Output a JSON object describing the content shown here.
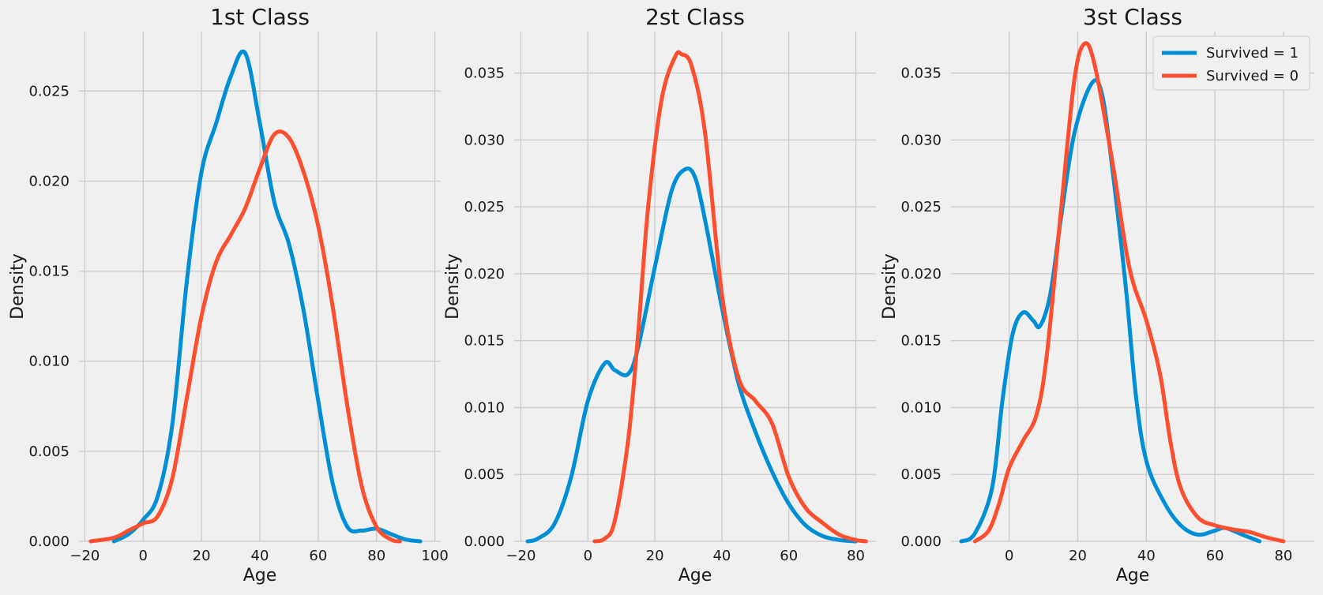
{
  "chart_data": [
    {
      "type": "line",
      "title": "1st Class",
      "xlabel": "Age",
      "ylabel": "Density",
      "xlim": [
        -22,
        102
      ],
      "ylim": [
        0,
        0.0283
      ],
      "xticks": [
        -20,
        0,
        20,
        40,
        60,
        80,
        100
      ],
      "xtick_labels": [
        "−20",
        "0",
        "20",
        "40",
        "60",
        "80",
        "100"
      ],
      "yticks": [
        0,
        0.005,
        0.01,
        0.015,
        0.02,
        0.025
      ],
      "ytick_labels": [
        "0.000",
        "0.005",
        "0.010",
        "0.015",
        "0.020",
        "0.025"
      ],
      "grid": true,
      "series": [
        {
          "name": "Survived = 1",
          "color": "#008fd5",
          "points": [
            [
              -10,
              0
            ],
            [
              -5,
              0.0004
            ],
            [
              0,
              0.0012
            ],
            [
              5,
              0.0025
            ],
            [
              10,
              0.0065
            ],
            [
              15,
              0.0145
            ],
            [
              20,
              0.0205
            ],
            [
              25,
              0.0232
            ],
            [
              30,
              0.0258
            ],
            [
              35,
              0.0271
            ],
            [
              40,
              0.0232
            ],
            [
              45,
              0.0188
            ],
            [
              50,
              0.0165
            ],
            [
              55,
              0.0128
            ],
            [
              60,
              0.0078
            ],
            [
              65,
              0.0032
            ],
            [
              70,
              0.0008
            ],
            [
              75,
              0.0006
            ],
            [
              80,
              0.0007
            ],
            [
              85,
              0.0004
            ],
            [
              90,
              0.0001
            ],
            [
              95,
              0
            ]
          ]
        },
        {
          "name": "Survived = 0",
          "color": "#fc4f30",
          "points": [
            [
              -18,
              0
            ],
            [
              -10,
              0.0002
            ],
            [
              -5,
              0.0006
            ],
            [
              0,
              0.001
            ],
            [
              5,
              0.0014
            ],
            [
              10,
              0.0035
            ],
            [
              15,
              0.008
            ],
            [
              20,
              0.0125
            ],
            [
              25,
              0.0155
            ],
            [
              30,
              0.017
            ],
            [
              35,
              0.0185
            ],
            [
              40,
              0.0207
            ],
            [
              45,
              0.0226
            ],
            [
              50,
              0.0224
            ],
            [
              55,
              0.0205
            ],
            [
              60,
              0.0175
            ],
            [
              65,
              0.013
            ],
            [
              70,
              0.0075
            ],
            [
              75,
              0.003
            ],
            [
              80,
              0.0008
            ],
            [
              85,
              0.0001
            ],
            [
              88,
              0
            ]
          ]
        }
      ]
    },
    {
      "type": "line",
      "title": "2st Class",
      "xlabel": "Age",
      "ylabel": "Density",
      "xlim": [
        -22,
        86
      ],
      "ylim": [
        0,
        0.0381
      ],
      "xticks": [
        -20,
        0,
        20,
        40,
        60,
        80
      ],
      "xtick_labels": [
        "−20",
        "0",
        "20",
        "40",
        "60",
        "80"
      ],
      "yticks": [
        0,
        0.005,
        0.01,
        0.015,
        0.02,
        0.025,
        0.03,
        0.035
      ],
      "ytick_labels": [
        "0.000",
        "0.005",
        "0.010",
        "0.015",
        "0.020",
        "0.025",
        "0.030",
        "0.035"
      ],
      "grid": true,
      "series": [
        {
          "name": "Survived = 1",
          "color": "#008fd5",
          "points": [
            [
              -18,
              0
            ],
            [
              -15,
              0.0002
            ],
            [
              -10,
              0.0013
            ],
            [
              -5,
              0.0048
            ],
            [
              0,
              0.0105
            ],
            [
              5,
              0.0133
            ],
            [
              8,
              0.0128
            ],
            [
              12,
              0.0125
            ],
            [
              15,
              0.0145
            ],
            [
              20,
              0.0205
            ],
            [
              25,
              0.0262
            ],
            [
              29,
              0.0278
            ],
            [
              32,
              0.0272
            ],
            [
              35,
              0.024
            ],
            [
              40,
              0.0175
            ],
            [
              45,
              0.0118
            ],
            [
              50,
              0.0082
            ],
            [
              55,
              0.0052
            ],
            [
              60,
              0.0028
            ],
            [
              65,
              0.0012
            ],
            [
              70,
              0.0004
            ],
            [
              75,
              0.0001
            ],
            [
              80,
              0
            ]
          ]
        },
        {
          "name": "Survived = 0",
          "color": "#fc4f30",
          "points": [
            [
              2,
              0
            ],
            [
              5,
              0.0002
            ],
            [
              8,
              0.0015
            ],
            [
              12,
              0.0075
            ],
            [
              15,
              0.0155
            ],
            [
              18,
              0.025
            ],
            [
              22,
              0.033
            ],
            [
              26,
              0.0362
            ],
            [
              28,
              0.0364
            ],
            [
              31,
              0.0355
            ],
            [
              35,
              0.0305
            ],
            [
              40,
              0.0185
            ],
            [
              45,
              0.0122
            ],
            [
              50,
              0.0105
            ],
            [
              55,
              0.0088
            ],
            [
              60,
              0.0048
            ],
            [
              65,
              0.0025
            ],
            [
              70,
              0.0014
            ],
            [
              75,
              0.0005
            ],
            [
              80,
              0.0001
            ],
            [
              83,
              0
            ]
          ]
        }
      ]
    },
    {
      "type": "line",
      "title": "3st Class",
      "xlabel": "Age",
      "ylabel": "Density",
      "xlim": [
        -17,
        89
      ],
      "ylim": [
        0,
        0.0381
      ],
      "xticks": [
        0,
        20,
        40,
        60,
        80
      ],
      "xtick_labels": [
        "0",
        "20",
        "40",
        "60",
        "80"
      ],
      "yticks": [
        0,
        0.005,
        0.01,
        0.015,
        0.02,
        0.025,
        0.03,
        0.035
      ],
      "ytick_labels": [
        "0.000",
        "0.005",
        "0.010",
        "0.015",
        "0.020",
        "0.025",
        "0.030",
        "0.035"
      ],
      "grid": true,
      "legend": "top-right",
      "series": [
        {
          "name": "Survived = 1",
          "color": "#008fd5",
          "points": [
            [
              -14,
              0
            ],
            [
              -10,
              0.0006
            ],
            [
              -5,
              0.004
            ],
            [
              -2,
              0.0105
            ],
            [
              1,
              0.0155
            ],
            [
              4,
              0.0171
            ],
            [
              7,
              0.0165
            ],
            [
              9,
              0.0161
            ],
            [
              12,
              0.0185
            ],
            [
              15,
              0.024
            ],
            [
              19,
              0.0305
            ],
            [
              24,
              0.0342
            ],
            [
              27,
              0.0335
            ],
            [
              30,
              0.028
            ],
            [
              34,
              0.019
            ],
            [
              37,
              0.0108
            ],
            [
              40,
              0.006
            ],
            [
              45,
              0.003
            ],
            [
              50,
              0.0012
            ],
            [
              55,
              0.0005
            ],
            [
              60,
              0.0008
            ],
            [
              63,
              0.001
            ],
            [
              68,
              0.0005
            ],
            [
              73,
              0
            ]
          ]
        },
        {
          "name": "Survived = 0",
          "color": "#fc4f30",
          "points": [
            [
              -10,
              0
            ],
            [
              -6,
              0.0008
            ],
            [
              -3,
              0.0028
            ],
            [
              0,
              0.0055
            ],
            [
              4,
              0.0075
            ],
            [
              8,
              0.0095
            ],
            [
              11,
              0.014
            ],
            [
              15,
              0.0245
            ],
            [
              19,
              0.0345
            ],
            [
              22,
              0.0372
            ],
            [
              25,
              0.0355
            ],
            [
              30,
              0.0285
            ],
            [
              35,
              0.0205
            ],
            [
              40,
              0.0165
            ],
            [
              44,
              0.0125
            ],
            [
              47,
              0.0075
            ],
            [
              50,
              0.004
            ],
            [
              55,
              0.0018
            ],
            [
              60,
              0.0012
            ],
            [
              65,
              0.0009
            ],
            [
              70,
              0.0007
            ],
            [
              75,
              0.0003
            ],
            [
              80,
              0
            ]
          ]
        }
      ]
    }
  ]
}
